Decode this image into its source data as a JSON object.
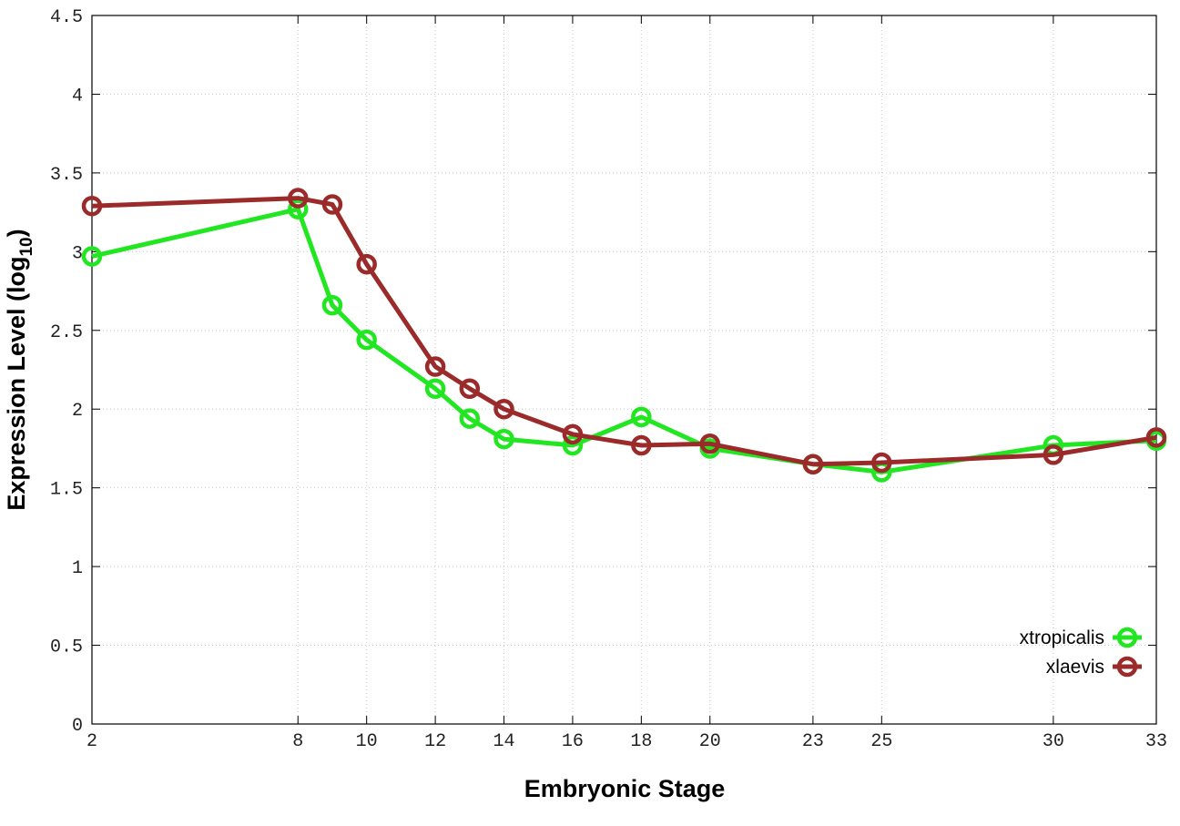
{
  "chart_data": {
    "type": "line",
    "xlabel": "Embryonic Stage",
    "ylabel": "Expression Level (log",
    "ylabel_subscript": "10",
    "ylabel_close": ")",
    "x_scale": "linear",
    "xlim": [
      2,
      33
    ],
    "ylim": [
      0,
      4.5
    ],
    "x_ticks": [
      2,
      8,
      10,
      12,
      14,
      16,
      18,
      20,
      23,
      25,
      30,
      33
    ],
    "x_tick_labels": [
      "2",
      "8",
      "10",
      "12",
      "14",
      "16",
      "18",
      "20",
      "23",
      "25",
      "30",
      "33"
    ],
    "y_ticks": [
      0,
      0.5,
      1,
      1.5,
      2,
      2.5,
      3,
      3.5,
      4,
      4.5
    ],
    "y_tick_labels": [
      "0",
      "0.5",
      "1",
      "1.5",
      "2",
      "2.5",
      "3",
      "3.5",
      "4",
      "4.5"
    ],
    "grid": true,
    "legend_position": "bottom-right",
    "series": [
      {
        "name": "xtropicalis",
        "color": "#22e622",
        "marker": "open-circle",
        "x": [
          2,
          8,
          9,
          10,
          12,
          13,
          14,
          16,
          18,
          20,
          23,
          25,
          30,
          33
        ],
        "y": [
          2.97,
          3.27,
          2.66,
          2.44,
          2.13,
          1.94,
          1.81,
          1.77,
          1.95,
          1.75,
          1.65,
          1.6,
          1.77,
          1.8
        ]
      },
      {
        "name": "xlaevis",
        "color": "#9b2b2b",
        "marker": "open-circle",
        "x": [
          2,
          8,
          9,
          10,
          12,
          13,
          14,
          16,
          18,
          20,
          23,
          25,
          30,
          33
        ],
        "y": [
          3.29,
          3.34,
          3.3,
          2.92,
          2.27,
          2.13,
          2.0,
          1.84,
          1.77,
          1.78,
          1.65,
          1.66,
          1.71,
          1.82
        ]
      }
    ]
  }
}
